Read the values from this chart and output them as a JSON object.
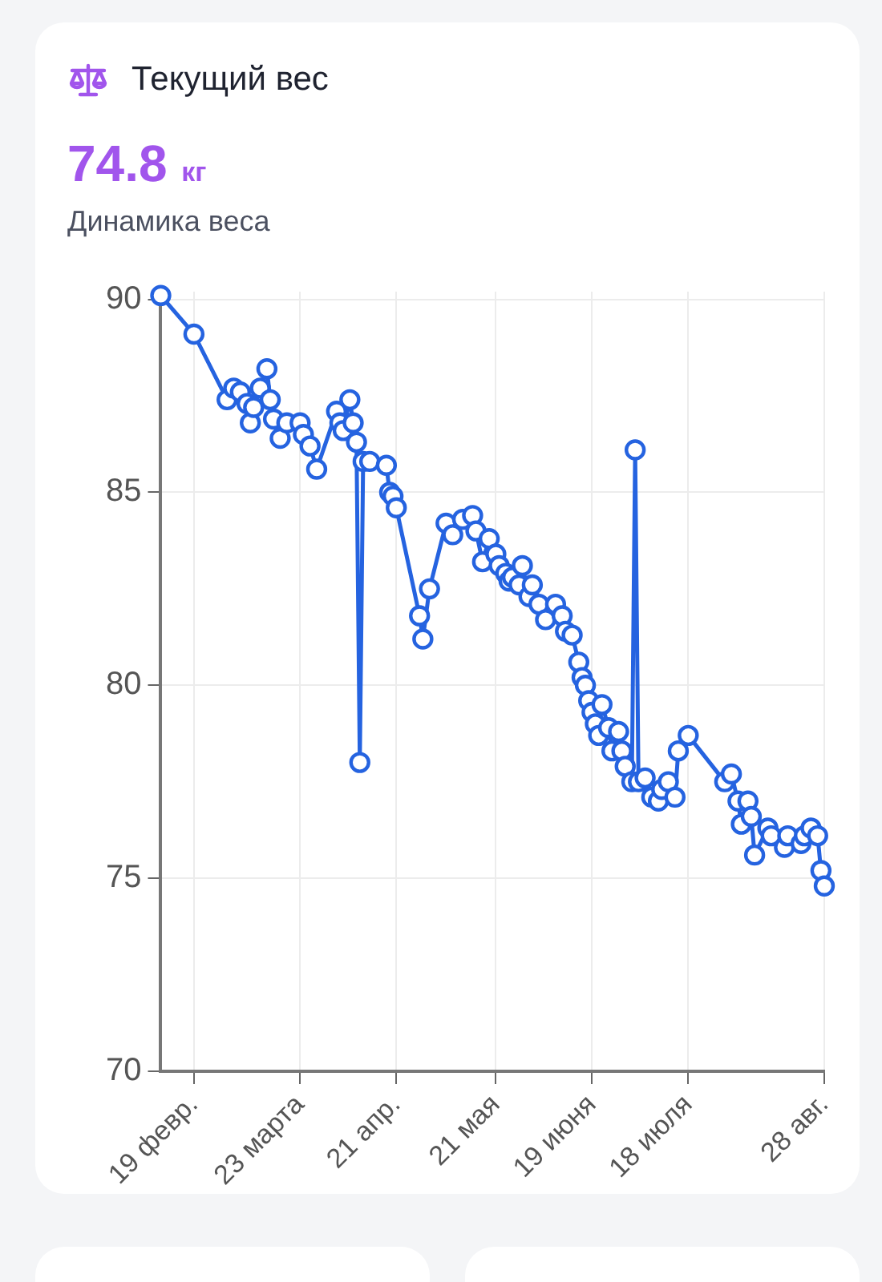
{
  "chart_data": {
    "type": "line",
    "title": "Текущий вес",
    "subtitle": "Динамика веса",
    "annotations": [
      "74.8 кг"
    ],
    "x": [
      "--02-09",
      "--02-19",
      "--03-01",
      "--03-03",
      "--03-05",
      "--03-07",
      "--03-08",
      "--03-09",
      "--03-11",
      "--03-13",
      "--03-14",
      "--03-15",
      "--03-17",
      "--03-19",
      "--03-23",
      "--03-24",
      "--03-26",
      "--03-28",
      "--04-03",
      "--04-04",
      "--04-05",
      "--04-07",
      "--04-08",
      "--04-09",
      "--04-10",
      "--04-11",
      "--04-13",
      "--04-18",
      "--04-19",
      "--04-20",
      "--04-21",
      "--04-28",
      "--04-29",
      "--05-01",
      "--05-06",
      "--05-08",
      "--05-11",
      "--05-14",
      "--05-15",
      "--05-17",
      "--05-19",
      "--05-21",
      "--05-22",
      "--05-24",
      "--05-25",
      "--05-26",
      "--05-28",
      "--05-29",
      "--05-31",
      "--06-01",
      "--06-03",
      "--06-05",
      "--06-08",
      "--06-10",
      "--06-11",
      "--06-13",
      "--06-15",
      "--06-16",
      "--06-17",
      "--06-18",
      "--06-19",
      "--06-20",
      "--06-21",
      "--06-22",
      "--06-24",
      "--06-25",
      "--06-27",
      "--06-28",
      "--06-29",
      "--07-01",
      "--07-02",
      "--07-03",
      "--07-05",
      "--07-07",
      "--07-09",
      "--07-10",
      "--07-12",
      "--07-14",
      "--07-15",
      "--07-18",
      "--07-29",
      "--07-31",
      "--08-02",
      "--08-03",
      "--08-05",
      "--08-06",
      "--08-07",
      "--08-11",
      "--08-12",
      "--08-16",
      "--08-17",
      "--08-21",
      "--08-22",
      "--08-24",
      "--08-26",
      "--08-27",
      "--08-28"
    ],
    "series": [
      {
        "color": "#2563e0",
        "values": [
          90.1,
          89.1,
          87.4,
          87.7,
          87.6,
          87.3,
          86.8,
          87.2,
          87.7,
          88.2,
          87.4,
          86.9,
          86.4,
          86.8,
          86.8,
          86.5,
          86.2,
          85.6,
          87.1,
          86.8,
          86.6,
          87.4,
          86.8,
          86.3,
          78.0,
          85.8,
          85.8,
          85.7,
          85.0,
          84.9,
          84.6,
          81.8,
          81.2,
          82.5,
          84.2,
          83.9,
          84.3,
          84.4,
          84.0,
          83.2,
          83.8,
          83.4,
          83.1,
          82.9,
          82.7,
          82.8,
          82.6,
          83.1,
          82.3,
          82.6,
          82.1,
          81.7,
          82.1,
          81.8,
          81.4,
          81.3,
          80.6,
          80.2,
          80.0,
          79.6,
          79.3,
          79.0,
          78.7,
          79.5,
          78.9,
          78.3,
          78.8,
          78.3,
          77.9,
          77.5,
          86.1,
          77.5,
          77.6,
          77.1,
          77.0,
          77.3,
          77.5,
          77.1,
          78.3,
          78.7,
          77.5,
          77.7,
          77.0,
          76.4,
          77.0,
          76.6,
          75.6,
          76.3,
          76.1,
          75.8,
          76.1,
          75.9,
          76.1,
          76.3,
          76.1,
          75.2,
          74.8
        ]
      }
    ],
    "xlim": [
      "--02-09",
      "--08-28"
    ],
    "xticks": [
      {
        "value": "--02-19",
        "label": "19 февр."
      },
      {
        "value": "--03-23",
        "label": "23 марта"
      },
      {
        "value": "--04-21",
        "label": "21 апр."
      },
      {
        "value": "--05-21",
        "label": "21 мая"
      },
      {
        "value": "--06-19",
        "label": "19 июня"
      },
      {
        "value": "--07-18",
        "label": "18 июля"
      },
      {
        "value": "--08-28",
        "label": "28 авг."
      }
    ],
    "ylim": [
      70,
      90.2
    ],
    "yticks": [
      70,
      75,
      80,
      85,
      90
    ],
    "grid": true,
    "legend": false,
    "marker": "circle",
    "line_style": "solid"
  }
}
